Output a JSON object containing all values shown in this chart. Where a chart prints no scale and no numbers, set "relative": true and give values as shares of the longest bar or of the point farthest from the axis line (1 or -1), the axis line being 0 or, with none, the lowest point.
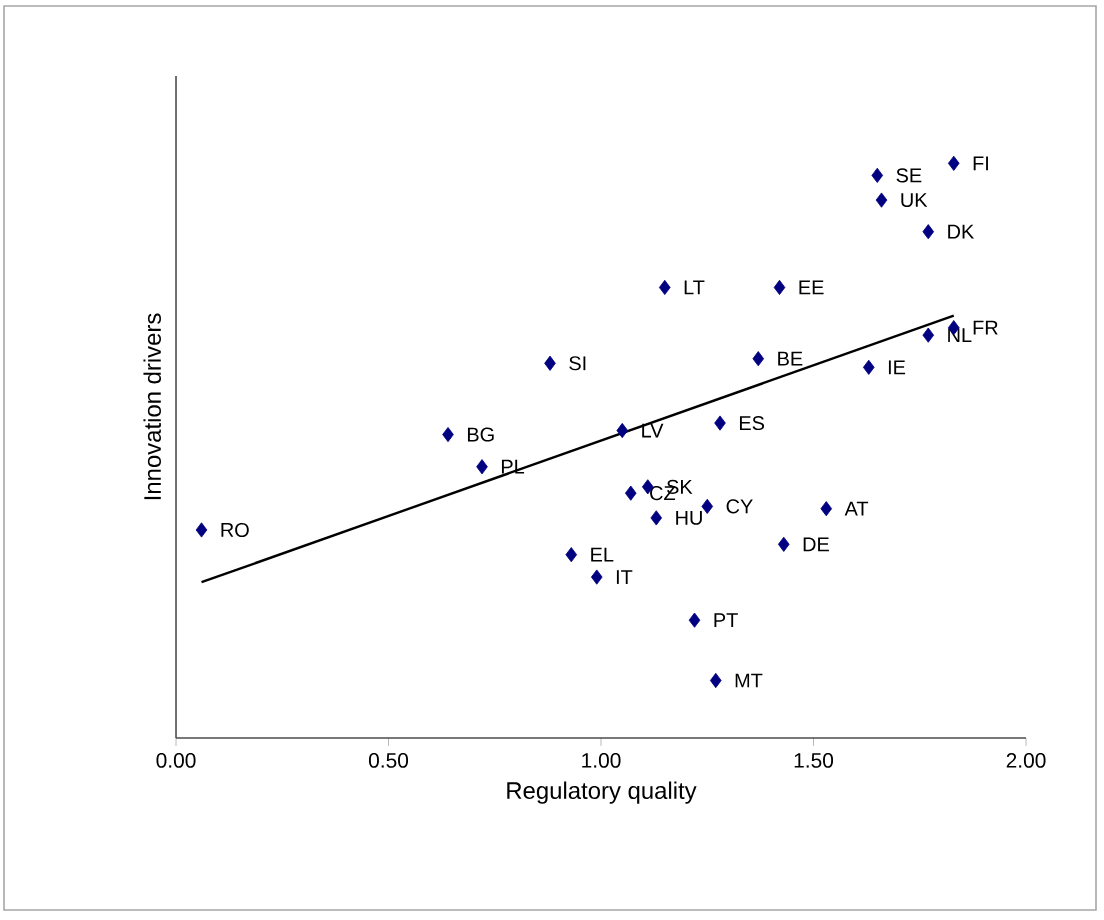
{
  "chart_data": {
    "type": "scatter",
    "xlabel": "Regulatory quality",
    "ylabel": "Innovation drivers",
    "relative": true,
    "xlim": [
      0,
      2
    ],
    "xticks": [
      {
        "value": 0,
        "label": "0.00"
      },
      {
        "value": 0.5,
        "label": "0.50"
      },
      {
        "value": 1,
        "label": "1.00"
      },
      {
        "value": 1.5,
        "label": "1.50"
      },
      {
        "value": 2,
        "label": "2.00"
      }
    ],
    "series": [
      {
        "marker": "diamond",
        "color": "#000080",
        "x": [
          1.83,
          1.65,
          1.66,
          1.77,
          1.15,
          1.42,
          1.83,
          1.77,
          1.37,
          1.63,
          0.88,
          0.64,
          1.05,
          1.28,
          0.72,
          0.06,
          1.11,
          1.07,
          1.13,
          1.25,
          1.53,
          1.43,
          0.93,
          0.99,
          1.22,
          1.27
        ],
        "values": [
          1.0,
          0.979,
          0.936,
          0.881,
          0.784,
          0.784,
          0.714,
          0.701,
          0.66,
          0.645,
          0.652,
          0.528,
          0.535,
          0.548,
          0.472,
          0.362,
          0.437,
          0.426,
          0.383,
          0.403,
          0.399,
          0.337,
          0.319,
          0.28,
          0.205,
          0.1
        ]
      },
      {
        "type": "line",
        "marker": "none",
        "color": "#000000",
        "x": [
          0.06,
          1.83
        ],
        "values": [
          0.271,
          0.735
        ]
      }
    ],
    "annotations": [
      {
        "text": "FI",
        "x": 1.83,
        "y": 1.0
      },
      {
        "text": "SE",
        "x": 1.65,
        "y": 0.979
      },
      {
        "text": "UK",
        "x": 1.66,
        "y": 0.936
      },
      {
        "text": "DK",
        "x": 1.77,
        "y": 0.881
      },
      {
        "text": "LT",
        "x": 1.15,
        "y": 0.784
      },
      {
        "text": "EE",
        "x": 1.42,
        "y": 0.784
      },
      {
        "text": "FR",
        "x": 1.83,
        "y": 0.714
      },
      {
        "text": "NL",
        "x": 1.77,
        "y": 0.701
      },
      {
        "text": "BE",
        "x": 1.37,
        "y": 0.66
      },
      {
        "text": "IE",
        "x": 1.63,
        "y": 0.645
      },
      {
        "text": "SI",
        "x": 0.88,
        "y": 0.652
      },
      {
        "text": "BG",
        "x": 0.64,
        "y": 0.528
      },
      {
        "text": "LV",
        "x": 1.05,
        "y": 0.535
      },
      {
        "text": "ES",
        "x": 1.28,
        "y": 0.548
      },
      {
        "text": "PL",
        "x": 0.72,
        "y": 0.472
      },
      {
        "text": "RO",
        "x": 0.06,
        "y": 0.362
      },
      {
        "text": "SK",
        "x": 1.11,
        "y": 0.437
      },
      {
        "text": "CZ",
        "x": 1.07,
        "y": 0.426
      },
      {
        "text": "HU",
        "x": 1.13,
        "y": 0.383
      },
      {
        "text": "CY",
        "x": 1.25,
        "y": 0.403
      },
      {
        "text": "AT",
        "x": 1.53,
        "y": 0.399
      },
      {
        "text": "DE",
        "x": 1.43,
        "y": 0.337
      },
      {
        "text": "EL",
        "x": 0.93,
        "y": 0.319
      },
      {
        "text": "IT",
        "x": 0.99,
        "y": 0.28
      },
      {
        "text": "PT",
        "x": 1.22,
        "y": 0.205
      },
      {
        "text": "MT",
        "x": 1.27,
        "y": 0.1
      }
    ]
  }
}
